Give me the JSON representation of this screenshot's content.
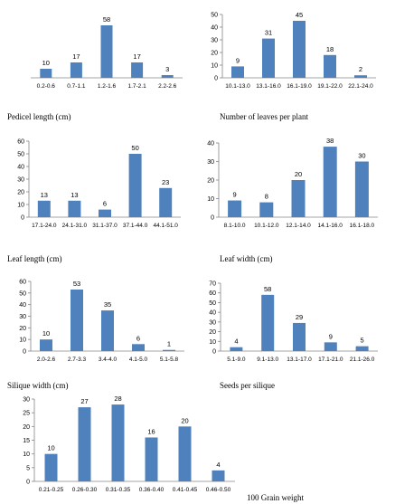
{
  "chart_data": [
    {
      "type": "bar",
      "xlabel": "Pedicel length (cm)",
      "categories": [
        "0.2-0.6",
        "0.7-1.1",
        "1.2-1.6",
        "1.7-2.1",
        "2.2-2.6"
      ],
      "values": [
        10,
        17,
        58,
        17,
        3
      ],
      "ylim": [
        0,
        70
      ],
      "yticks": [],
      "show_y_axis": false
    },
    {
      "type": "bar",
      "xlabel": "Number of leaves per plant",
      "categories": [
        "10.1-13.0",
        "13.1-16.0",
        "16.1-19.0",
        "19.1-22.0",
        "22.1-24.0"
      ],
      "values": [
        9,
        31,
        45,
        18,
        2
      ],
      "ylim": [
        0,
        50
      ],
      "yticks": [
        0,
        10,
        20,
        30,
        40,
        50
      ],
      "show_y_axis": true
    },
    {
      "type": "bar",
      "xlabel": "Leaf length (cm)",
      "categories": [
        "17.1-24.0",
        "24.1-31.0",
        "31.1-37.0",
        "37.1-44.0",
        "44.1-51.0"
      ],
      "values": [
        13,
        13,
        6,
        50,
        23
      ],
      "ylim": [
        0,
        60
      ],
      "yticks": [
        0,
        10,
        20,
        30,
        40,
        50,
        60
      ],
      "show_y_axis": true
    },
    {
      "type": "bar",
      "xlabel": "Leaf width (cm)",
      "categories": [
        "8.1-10.0",
        "10.1-12.0",
        "12.1-14.0",
        "14.1-16.0",
        "16.1-18.0"
      ],
      "values": [
        9,
        8,
        20,
        38,
        30
      ],
      "ylim": [
        0,
        40
      ],
      "yticks": [
        0,
        10,
        20,
        30,
        40
      ],
      "show_y_axis": true
    },
    {
      "type": "bar",
      "xlabel": "Silique width (cm)",
      "categories": [
        "2.0-2.6",
        "2.7-3.3",
        "3.4-4.0",
        "4.1-5.0",
        "5.1-5.8"
      ],
      "values": [
        10,
        53,
        35,
        6,
        1
      ],
      "ylim": [
        0,
        60
      ],
      "yticks": [
        0,
        10,
        20,
        30,
        40,
        50,
        60
      ],
      "show_y_axis": true
    },
    {
      "type": "bar",
      "xlabel": "Seeds per silique",
      "categories": [
        "5.1-9.0",
        "9.1-13.0",
        "13.1-17.0",
        "17.1-21.0",
        "21.1-26.0"
      ],
      "values": [
        4,
        58,
        29,
        9,
        5
      ],
      "ylim": [
        0,
        70
      ],
      "yticks": [
        0,
        10,
        20,
        30,
        40,
        50,
        60,
        70
      ],
      "show_y_axis": true
    },
    {
      "type": "bar",
      "xlabel": "100 Grain weight",
      "categories": [
        "0.21-0.25",
        "0.26-0.30",
        "0.31-0.35",
        "0.36-0.40",
        "0.41-0.45",
        "0.46-0.50"
      ],
      "values": [
        10,
        27,
        28,
        16,
        20,
        4
      ],
      "ylim": [
        0,
        30
      ],
      "yticks": [
        0,
        5,
        10,
        15,
        20,
        25,
        30
      ],
      "show_y_axis": true
    }
  ],
  "colors": {
    "bar": "#4f81bd",
    "axis": "#868686",
    "text": "#000000"
  }
}
